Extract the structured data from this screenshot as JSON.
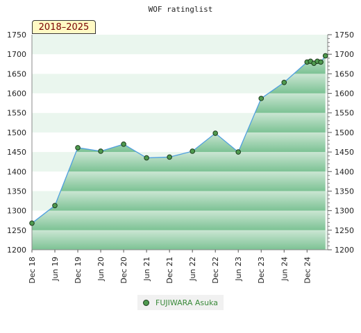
{
  "chart_data": {
    "type": "area",
    "title": "WOF ratinglist",
    "badge": "2018–2025",
    "ylim": [
      1200,
      1750
    ],
    "yticks": [
      1200,
      1250,
      1300,
      1350,
      1400,
      1450,
      1500,
      1550,
      1600,
      1650,
      1700,
      1750
    ],
    "xticks": [
      "Dec 18",
      "Jun 19",
      "Dec 19",
      "Jun 20",
      "Dec 20",
      "Jun 21",
      "Dec 21",
      "Jun 22",
      "Dec 22",
      "Jun 23",
      "Dec 23",
      "Jun 24",
      "Dec 24"
    ],
    "x_range": [
      0,
      12.9
    ],
    "series": [
      {
        "name": "FUJIWARA Asuka",
        "x": [
          0,
          1,
          2,
          3,
          4,
          5,
          6,
          7,
          8,
          9,
          10,
          11,
          12,
          12.15,
          12.3,
          12.45,
          12.6,
          12.8
        ],
        "values": [
          1268,
          1313,
          1461,
          1452,
          1470,
          1435,
          1437,
          1452,
          1498,
          1450,
          1587,
          1628,
          1680,
          1682,
          1677,
          1682,
          1680,
          1696
        ]
      }
    ],
    "colors": {
      "area_dark": "#7cc294",
      "area_light": "#cbe6d3",
      "line": "#4f9fdf",
      "marker": "#4f9a4f",
      "marker_stroke": "#1b3a1b",
      "legend_text": "#3a8a3a"
    }
  }
}
